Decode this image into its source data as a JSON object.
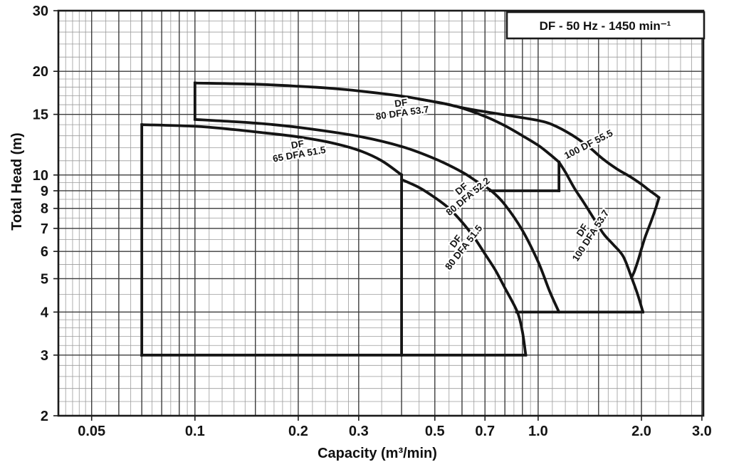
{
  "colors": {
    "curve": "#141414",
    "grid_major": "#3c3c3c",
    "grid_minor": "#9b9b9b",
    "border": "#1a1a1a",
    "text": "#141414",
    "background": "#ffffff"
  },
  "chart_data": {
    "type": "line",
    "log_x": true,
    "log_y": true,
    "legend_box_label": "DF - 50 Hz - 1450 min⁻¹",
    "xlabel": "Capacity  (m³/min)",
    "ylabel": "Total Head  (m)",
    "xlim": [
      0.04,
      3.03
    ],
    "ylim": [
      2,
      30
    ],
    "x_ticks": [
      {
        "v": 0.05,
        "label": "0.05"
      },
      {
        "v": 0.1,
        "label": "0.1"
      },
      {
        "v": 0.2,
        "label": "0.2"
      },
      {
        "v": 0.3,
        "label": "0.3"
      },
      {
        "v": 0.5,
        "label": "0.5"
      },
      {
        "v": 0.7,
        "label": "0.7"
      },
      {
        "v": 1.0,
        "label": "1.0"
      },
      {
        "v": 2.0,
        "label": "2.0"
      },
      {
        "v": 3.0,
        "label": "3.0"
      }
    ],
    "y_ticks": [
      {
        "v": 30,
        "label": "30"
      },
      {
        "v": 20,
        "label": "20"
      },
      {
        "v": 15,
        "label": "15"
      },
      {
        "v": 10,
        "label": "10"
      },
      {
        "v": 9,
        "label": "9"
      },
      {
        "v": 8,
        "label": "8"
      },
      {
        "v": 7,
        "label": "7"
      },
      {
        "v": 6,
        "label": "6"
      },
      {
        "v": 5,
        "label": "5"
      },
      {
        "v": 4,
        "label": "4"
      },
      {
        "v": 3,
        "label": "3"
      },
      {
        "v": 2,
        "label": "2"
      }
    ],
    "grid": {
      "x_major": [
        0.05,
        0.06,
        0.07,
        0.08,
        0.09,
        0.1,
        0.15,
        0.2,
        0.3,
        0.4,
        0.5,
        0.6,
        0.7,
        0.8,
        0.9,
        1,
        1.5,
        2,
        3
      ],
      "x_minor": [
        0.042,
        0.044,
        0.046,
        0.048,
        0.055,
        0.065,
        0.075,
        0.085,
        0.095,
        0.11,
        0.12,
        0.13,
        0.14,
        0.16,
        0.17,
        0.18,
        0.19,
        0.22,
        0.24,
        0.26,
        0.28,
        0.35,
        0.45,
        0.55,
        0.65,
        0.75,
        0.85,
        0.95,
        1.1,
        1.2,
        1.3,
        1.4,
        1.6,
        1.7,
        1.8,
        1.9,
        2.2,
        2.4,
        2.6,
        2.8
      ],
      "y_major": [
        2,
        3,
        4,
        5,
        6,
        7,
        8,
        9,
        10,
        15,
        20,
        30
      ],
      "y_minor": [
        2.2,
        2.4,
        2.6,
        2.8,
        3.2,
        3.4,
        3.6,
        3.8,
        4.5,
        5.5,
        6.5,
        7.5,
        8.5,
        9.5,
        11,
        12,
        13,
        14,
        16,
        17,
        18,
        19,
        22,
        24,
        26,
        28
      ]
    },
    "series": [
      {
        "name": "DF 65 DFA 51.5 top curve",
        "points": [
          [
            0.07,
            14.0
          ],
          [
            0.1,
            13.85
          ],
          [
            0.13,
            13.55
          ],
          [
            0.16,
            13.25
          ],
          [
            0.2,
            12.9
          ],
          [
            0.25,
            12.4
          ],
          [
            0.3,
            11.8
          ],
          [
            0.35,
            11.0
          ],
          [
            0.4,
            10.0
          ]
        ]
      },
      {
        "name": "DF 80 DFA 53.7 curve",
        "points": [
          [
            0.1,
            18.5
          ],
          [
            0.15,
            18.35
          ],
          [
            0.2,
            18.1
          ],
          [
            0.25,
            17.85
          ],
          [
            0.3,
            17.55
          ],
          [
            0.4,
            16.95
          ],
          [
            0.5,
            16.3
          ],
          [
            0.58,
            15.8
          ],
          [
            0.7,
            14.8
          ],
          [
            0.8,
            13.9
          ],
          [
            0.9,
            13.0
          ],
          [
            1.0,
            12.2
          ],
          [
            1.08,
            11.5
          ],
          [
            1.15,
            10.9
          ]
        ]
      },
      {
        "name": "DF 80 DFA 52.2 curve",
        "points": [
          [
            0.1,
            14.5
          ],
          [
            0.15,
            14.15
          ],
          [
            0.2,
            13.75
          ],
          [
            0.3,
            12.95
          ],
          [
            0.4,
            12.1
          ],
          [
            0.5,
            11.15
          ],
          [
            0.6,
            10.2
          ],
          [
            0.66,
            9.6
          ],
          [
            0.73,
            9.0
          ],
          [
            0.8,
            8.2
          ],
          [
            0.9,
            6.9
          ],
          [
            1.0,
            5.6
          ],
          [
            1.08,
            4.6
          ],
          [
            1.15,
            4.0
          ]
        ]
      },
      {
        "name": "DF 80 DFA 51.5 curve",
        "points": [
          [
            0.4,
            9.7
          ],
          [
            0.45,
            9.2
          ],
          [
            0.5,
            8.6
          ],
          [
            0.55,
            8.0
          ],
          [
            0.6,
            7.3
          ],
          [
            0.65,
            6.6
          ],
          [
            0.7,
            5.9
          ],
          [
            0.75,
            5.3
          ],
          [
            0.8,
            4.7
          ],
          [
            0.87,
            4.0
          ],
          [
            0.9,
            3.5
          ],
          [
            0.92,
            3.0
          ]
        ]
      },
      {
        "name": "100 DF 55.5 curve",
        "points": [
          [
            0.45,
            16.6
          ],
          [
            0.52,
            16.2
          ],
          [
            0.58,
            15.8
          ],
          [
            0.65,
            15.45
          ],
          [
            0.75,
            15.1
          ],
          [
            0.85,
            14.8
          ],
          [
            1.0,
            14.4
          ],
          [
            1.1,
            14.0
          ],
          [
            1.25,
            13.1
          ],
          [
            1.4,
            12.1
          ],
          [
            1.55,
            11.1
          ],
          [
            1.7,
            10.4
          ],
          [
            1.85,
            9.9
          ],
          [
            2.0,
            9.4
          ],
          [
            2.1,
            9.05
          ],
          [
            2.2,
            8.75
          ],
          [
            2.25,
            8.6
          ]
        ]
      },
      {
        "name": "DF 100 DFA 53.7 curve",
        "points": [
          [
            1.15,
            10.9
          ],
          [
            1.2,
            10.2
          ],
          [
            1.28,
            9.1
          ],
          [
            1.35,
            8.4
          ],
          [
            1.45,
            7.5
          ],
          [
            1.55,
            6.75
          ],
          [
            1.65,
            6.3
          ],
          [
            1.77,
            5.8
          ],
          [
            1.87,
            5.05
          ],
          [
            1.95,
            4.5
          ],
          [
            2.02,
            4.0
          ]
        ]
      },
      {
        "name": "DF 100 right end boundary",
        "points": [
          [
            2.25,
            8.6
          ],
          [
            2.2,
            8.0
          ],
          [
            2.13,
            7.3
          ],
          [
            2.05,
            6.6
          ],
          [
            2.0,
            6.1
          ],
          [
            1.95,
            5.6
          ],
          [
            1.9,
            5.2
          ],
          [
            1.87,
            5.05
          ]
        ]
      }
    ],
    "segments": [
      {
        "name": "df65-left-limit",
        "from": [
          0.07,
          3
        ],
        "to": [
          0.07,
          14.0
        ]
      },
      {
        "name": "df65-right-limit",
        "from": [
          0.4,
          3
        ],
        "to": [
          0.4,
          10.0
        ]
      },
      {
        "name": "bottom-3m-limit",
        "from": [
          0.07,
          3
        ],
        "to": [
          0.92,
          3
        ]
      },
      {
        "name": "df80-left-limit",
        "from": [
          0.1,
          14.5
        ],
        "to": [
          0.1,
          18.5
        ]
      },
      {
        "name": "df80-right-limit",
        "from": [
          1.15,
          9.0
        ],
        "to": [
          1.15,
          10.9
        ]
      },
      {
        "name": "9m-limit",
        "from": [
          0.726,
          9.0
        ],
        "to": [
          1.15,
          9.0
        ]
      },
      {
        "name": "4m-limit",
        "from": [
          0.865,
          4.0
        ],
        "to": [
          2.02,
          4.0
        ]
      }
    ],
    "curve_labels": [
      {
        "lines": [
          "DF",
          "80 DFA 53.7"
        ],
        "x": 0.4,
        "y": 15.7,
        "rotate": -8
      },
      {
        "lines": [
          "DF",
          "65 DFA 51.5"
        ],
        "x": 0.2,
        "y": 11.9,
        "rotate": -10
      },
      {
        "lines": [
          "DF",
          "80 DFA 52.2"
        ],
        "x": 0.61,
        "y": 8.9,
        "rotate": -40
      },
      {
        "lines": [
          "DF",
          "80 DFA 51.5"
        ],
        "x": 0.59,
        "y": 6.3,
        "rotate": -52
      },
      {
        "lines": [
          "100 DF 55.5"
        ],
        "x": 1.4,
        "y": 12.3,
        "rotate": -27
      },
      {
        "lines": [
          "DF",
          "100 DFA 53.7"
        ],
        "x": 1.38,
        "y": 6.8,
        "rotate": -57
      }
    ]
  }
}
